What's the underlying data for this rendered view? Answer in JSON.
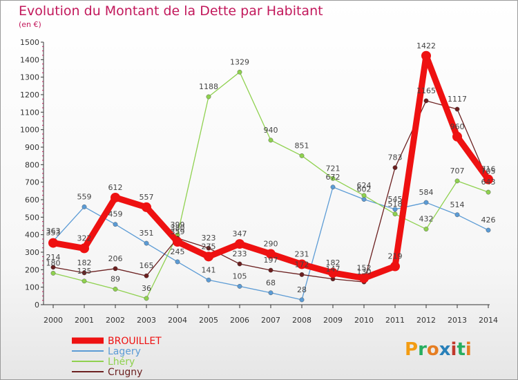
{
  "chart_data": {
    "type": "line",
    "title": "Evolution du Montant de la Dette par Habitant",
    "subtitle": "(en €)",
    "x": [
      "2000",
      "2001",
      "2002",
      "2003",
      "2004",
      "2005",
      "2006",
      "2007",
      "2008",
      "2009",
      "2010",
      "2011",
      "2012",
      "2013",
      "2014"
    ],
    "ylim": [
      0,
      1500
    ],
    "yticks": [
      0,
      100,
      200,
      300,
      400,
      500,
      600,
      700,
      800,
      900,
      1000,
      1100,
      1200,
      1300,
      1400,
      1500
    ],
    "series": [
      {
        "name": "Lagery",
        "color": "#5b9bd5",
        "values": [
          363,
          559,
          459,
          351,
          245,
          141,
          105,
          68,
          28,
          672,
          602,
          545,
          584,
          514,
          426
        ]
      },
      {
        "name": "Lhéry",
        "color": "#8fd14f",
        "values": [
          180,
          135,
          89,
          36,
          399,
          1188,
          1329,
          940,
          851,
          721,
          624,
          518,
          432,
          707,
          643
        ]
      },
      {
        "name": "Crugny",
        "color": "#6b1f1f",
        "values": [
          214,
          182,
          206,
          165,
          380,
          323,
          233,
          197,
          172,
          147,
          130,
          783,
          1165,
          1117,
          705
        ]
      },
      {
        "name": "BROUILLET",
        "color": "#ee1111",
        "values": [
          353,
          322,
          612,
          557,
          359,
          275,
          347,
          290,
          231,
          182,
          152,
          219,
          1422,
          960,
          716
        ]
      }
    ],
    "legend": [
      "BROUILLET",
      "Lagery",
      "Lhéry",
      "Crugny"
    ],
    "legend_position": "bottom-left",
    "grid": false
  },
  "logo": {
    "text": "Proxiti"
  }
}
